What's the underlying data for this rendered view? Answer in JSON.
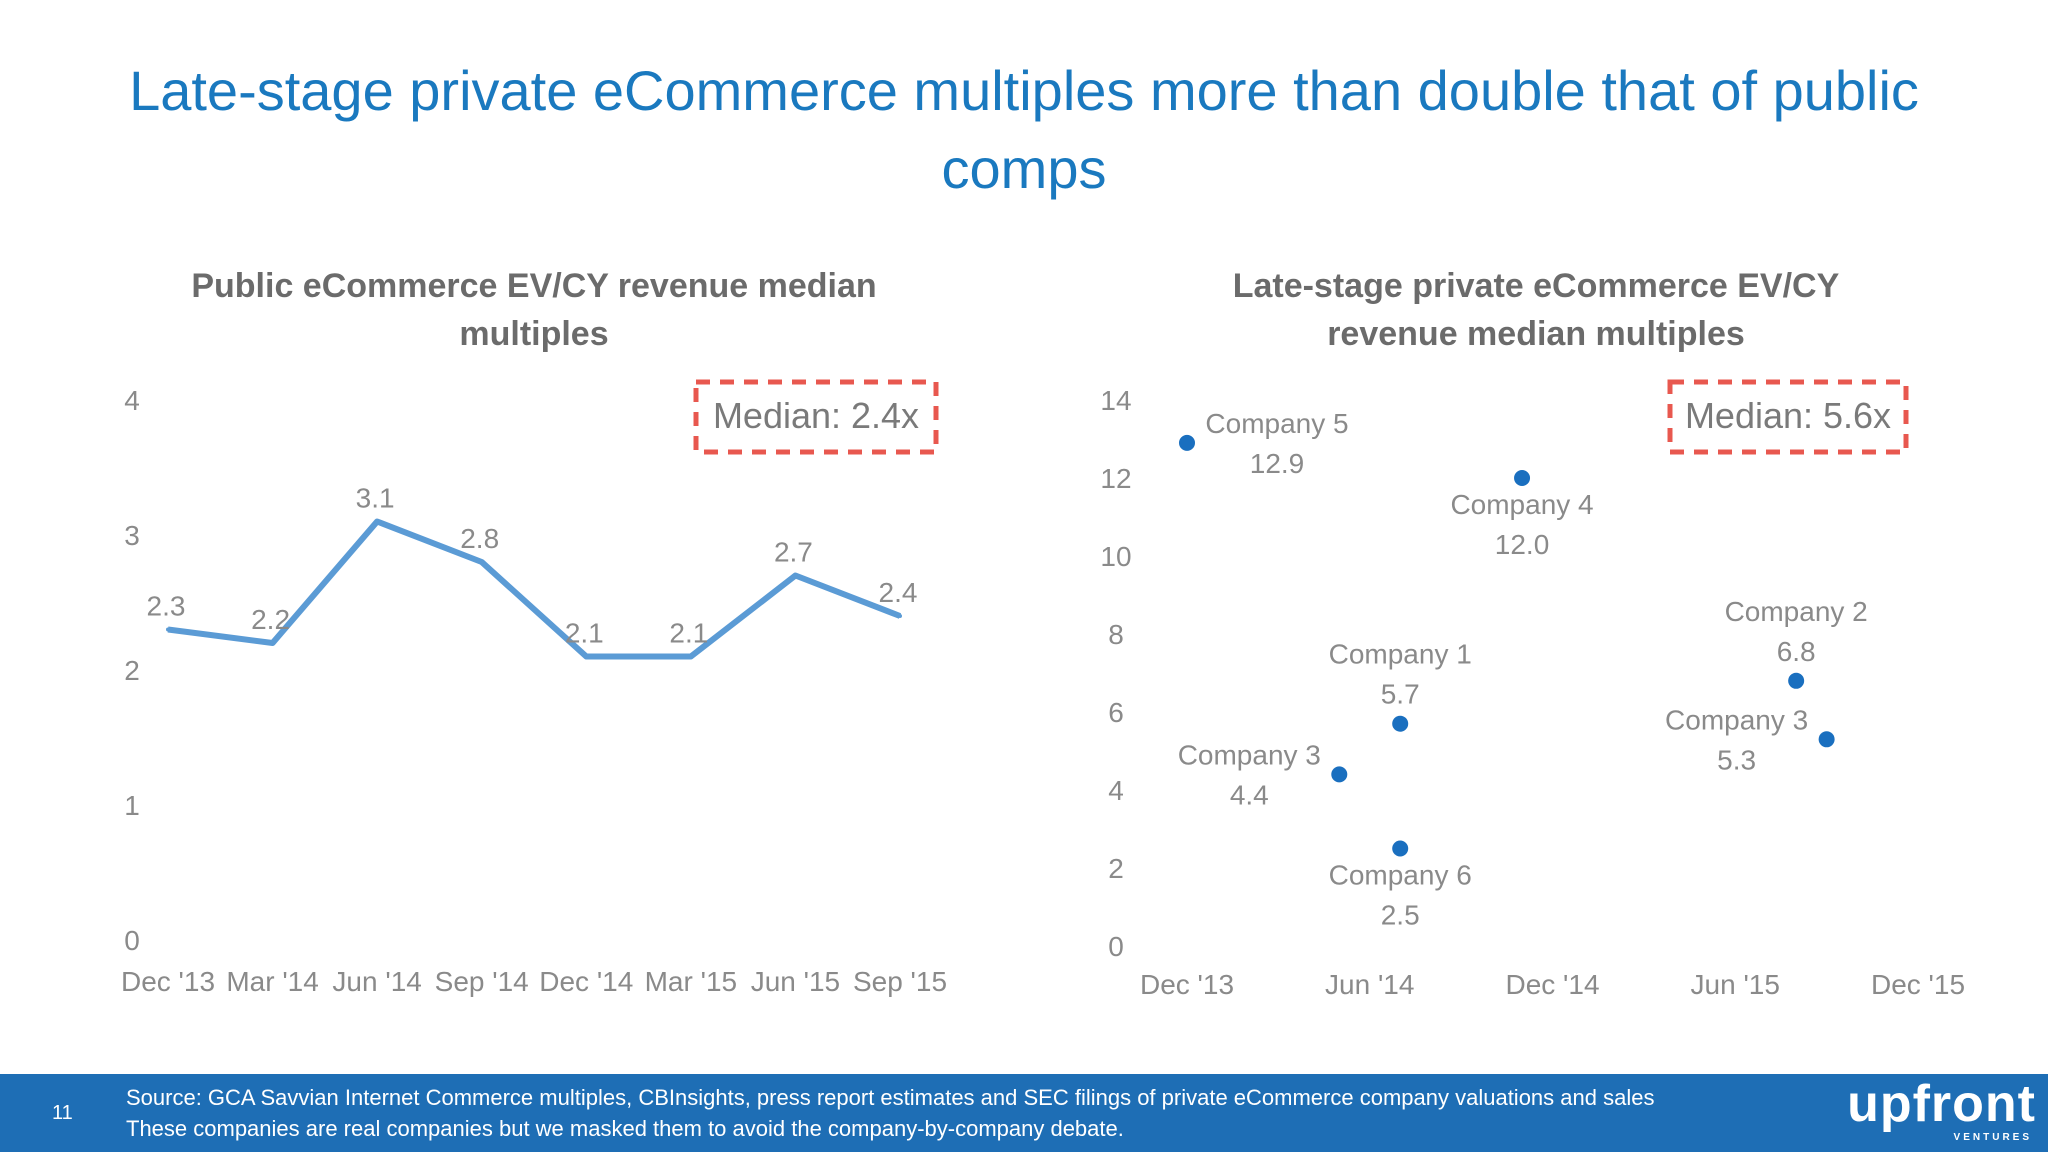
{
  "slide": {
    "title_line1": "Late-stage private eCommerce multiples more than double that of public",
    "title_line2": "comps",
    "page_number": "11",
    "source_line1": "Source: GCA Savvian Internet Commerce multiples, CBInsights, press report estimates and SEC filings of private eCommerce company valuations and sales",
    "source_line2": "These companies are real companies but we masked them to avoid the company-by-company debate.",
    "logo": "upfront",
    "logo_sub": "VENTURES",
    "colors": {
      "title": "#1a79bf",
      "line": "#5b9bd5",
      "dot": "#1a6fbf",
      "median_box": "#e8584f",
      "footer": "#1e6eb5"
    }
  },
  "chart_data": [
    {
      "type": "line",
      "title_line1": "Public eCommerce EV/CY revenue median",
      "title_line2": "multiples",
      "categories": [
        "Dec '13",
        "Mar '14",
        "Jun '14",
        "Sep '14",
        "Dec '14",
        "Mar '15",
        "Jun '15",
        "Sep '15"
      ],
      "series": [
        {
          "values": [
            2.3,
            2.2,
            3.1,
            2.8,
            2.1,
            2.1,
            2.7,
            2.4
          ]
        }
      ],
      "data_labels": [
        "2.3",
        "2.2",
        "3.1",
        "2.8",
        "2.1",
        "2.1",
        "2.7",
        "2.4"
      ],
      "ylim": [
        0,
        4
      ],
      "yticks": [
        "0",
        "1",
        "2",
        "3",
        "4"
      ],
      "annotation": "Median: 2.4x",
      "grid": false
    },
    {
      "type": "scatter",
      "title_line1": "Late-stage private eCommerce EV/CY",
      "title_line2": "revenue median multiples",
      "xticks": [
        "Dec '13",
        "Jun '14",
        "Dec '14",
        "Jun '15",
        "Dec '15"
      ],
      "xlim": [
        "2013-12",
        "2015-12"
      ],
      "ylim": [
        0,
        14
      ],
      "yticks": [
        "0",
        "2",
        "4",
        "6",
        "8",
        "10",
        "12",
        "14"
      ],
      "points": [
        {
          "label": "Company 5",
          "value_label": "12.9",
          "x": "2013-12",
          "y": 12.9
        },
        {
          "label": "Company 3",
          "value_label": "4.4",
          "x": "2014-05",
          "y": 4.4
        },
        {
          "label": "Company 1",
          "value_label": "5.7",
          "x": "2014-07",
          "y": 5.7
        },
        {
          "label": "Company 6",
          "value_label": "2.5",
          "x": "2014-07",
          "y": 2.5
        },
        {
          "label": "Company 4",
          "value_label": "12.0",
          "x": "2014-11",
          "y": 12.0
        },
        {
          "label": "Company 2",
          "value_label": "6.8",
          "x": "2015-08",
          "y": 6.8
        },
        {
          "label": "Company 3",
          "value_label": "5.3",
          "x": "2015-09",
          "y": 5.3
        }
      ],
      "annotation": "Median: 5.6x",
      "grid": false
    }
  ]
}
